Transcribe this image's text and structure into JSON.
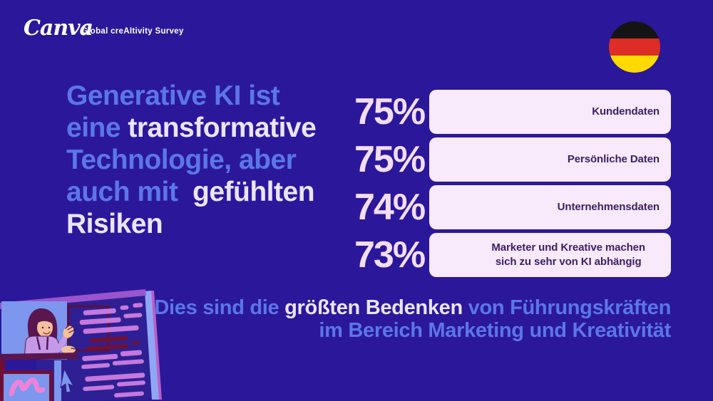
{
  "colors": {
    "background": "#2b179a",
    "headline_blue": "#5b76ea",
    "headline_light": "#ece4fa",
    "percent": "#f3ddf3",
    "bar_fill": "#f8e9fb",
    "bar_text": "#3c1f63",
    "logo_white": "#ffffff"
  },
  "header": {
    "logo": "Canva",
    "tagline": "Global creAItivity Survey"
  },
  "flag": {
    "country": "Germany",
    "stripes": [
      "#141414",
      "#dd2d26",
      "#ffd900"
    ]
  },
  "headline": {
    "lines": [
      [
        {
          "t": "Generative KI ist",
          "c": "blue"
        }
      ],
      [
        {
          "t": "eine ",
          "c": "blue"
        },
        {
          "t": "transformative",
          "c": "light"
        }
      ],
      [
        {
          "t": "Technologie, aber",
          "c": "blue"
        }
      ],
      [
        {
          "t": "auch mit ",
          "c": "blue"
        },
        {
          "t": " gefühlten",
          "c": "light"
        }
      ],
      [
        {
          "t": "Risiken",
          "c": "light"
        }
      ]
    ]
  },
  "stats": {
    "rows": [
      {
        "value": "75%",
        "label_lines": [
          "Kundendaten"
        ],
        "align": "right"
      },
      {
        "value": "75%",
        "label_lines": [
          "Persönliche Daten"
        ],
        "align": "right"
      },
      {
        "value": "74%",
        "label_lines": [
          "Unternehmensdaten"
        ],
        "align": "right"
      },
      {
        "value": "73%",
        "label_lines": [
          "Marketer und Kreative machen",
          "sich zu sehr von KI abhängig"
        ],
        "align": "center"
      }
    ]
  },
  "caption": {
    "lines": [
      [
        {
          "t": "Dies sind die ",
          "c": "blue"
        },
        {
          "t": "größten Bedenken",
          "c": "light"
        },
        {
          "t": " von Führungskräften",
          "c": "blue"
        }
      ],
      [
        {
          "t": "im Bereich Marketing und Kreativität",
          "c": "blue"
        }
      ]
    ]
  },
  "chart_data": {
    "type": "bar",
    "categories": [
      "Kundendaten",
      "Persönliche Daten",
      "Unternehmensdaten",
      "Marketer und Kreative machen sich zu sehr von KI abhängig"
    ],
    "values": [
      75,
      75,
      74,
      73
    ],
    "unit": "%",
    "title": "Generative KI ist eine transformative Technologie, aber auch mit gefühlten Risiken",
    "note": "Dies sind die größten Bedenken von Führungskräften im Bereich Marketing und Kreativität",
    "legend_position": "none",
    "grid": false
  }
}
